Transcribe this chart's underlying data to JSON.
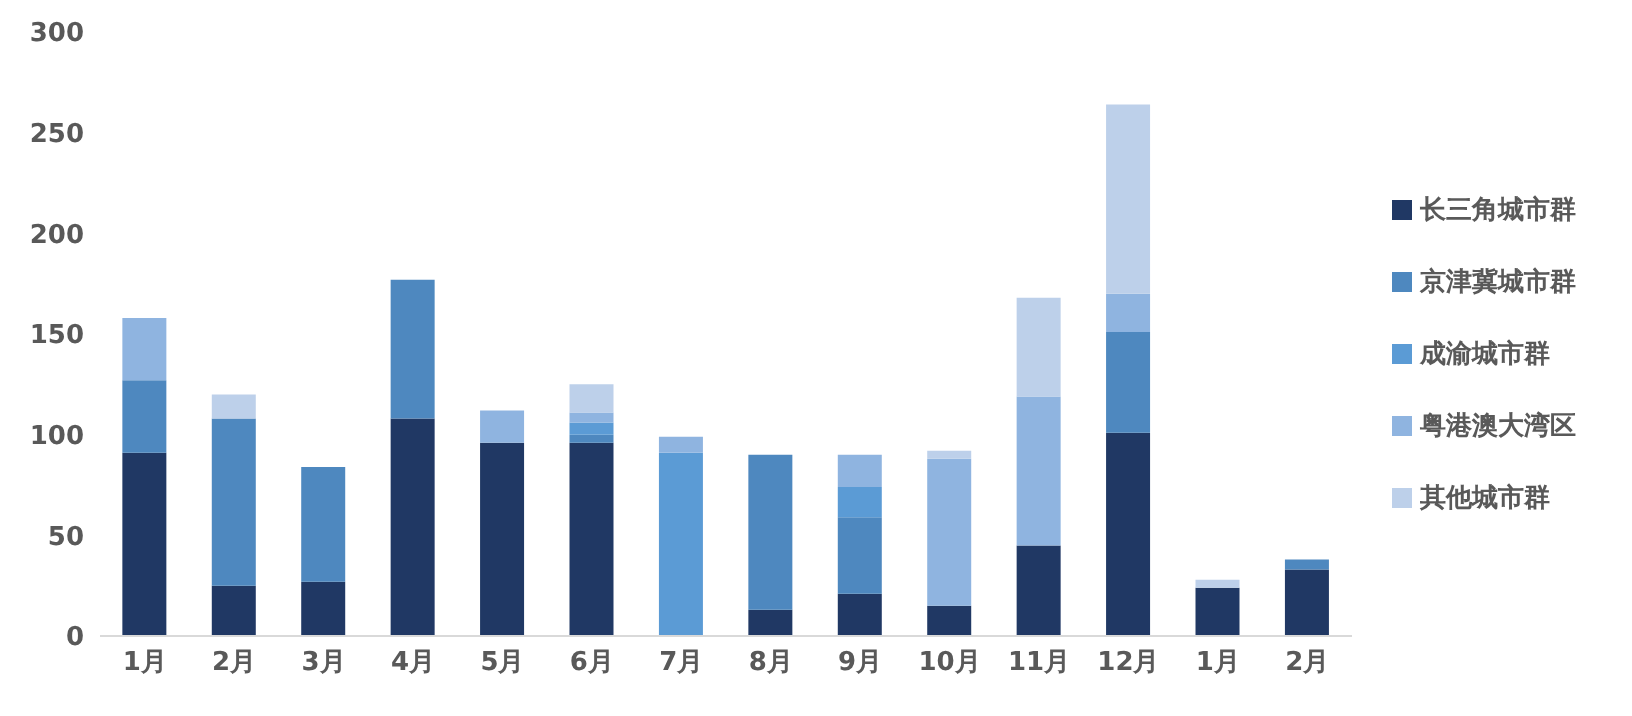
{
  "chart_data": {
    "type": "bar",
    "stacked": true,
    "categories": [
      "1月",
      "2月",
      "3月",
      "4月",
      "5月",
      "6月",
      "7月",
      "8月",
      "9月",
      "10月",
      "11月",
      "12月",
      "1月",
      "2月"
    ],
    "series": [
      {
        "name": "长三角城市群",
        "color": "#203864",
        "values": [
          91,
          25,
          27,
          108,
          96,
          96,
          0,
          13,
          21,
          15,
          45,
          101,
          24,
          33
        ]
      },
      {
        "name": "京津冀城市群",
        "color": "#4e88bf",
        "values": [
          36,
          83,
          57,
          69,
          0,
          4,
          0,
          77,
          38,
          0,
          0,
          50,
          0,
          5
        ]
      },
      {
        "name": "成渝城市群",
        "color": "#5b9bd5",
        "values": [
          0,
          0,
          0,
          0,
          0,
          6,
          91,
          0,
          15,
          0,
          0,
          0,
          0,
          0
        ]
      },
      {
        "name": "粤港澳大湾区",
        "color": "#8fb4e0",
        "values": [
          31,
          0,
          0,
          0,
          16,
          5,
          8,
          0,
          16,
          73,
          74,
          19,
          0,
          0
        ]
      },
      {
        "name": "其他城市群",
        "color": "#bdd0ea",
        "values": [
          0,
          12,
          0,
          0,
          0,
          14,
          0,
          0,
          0,
          4,
          49,
          94,
          4,
          0
        ]
      }
    ],
    "ylim": [
      0,
      300
    ],
    "yticks": [
      0,
      50,
      100,
      150,
      200,
      250,
      300
    ],
    "grid": false,
    "legend": "right"
  }
}
